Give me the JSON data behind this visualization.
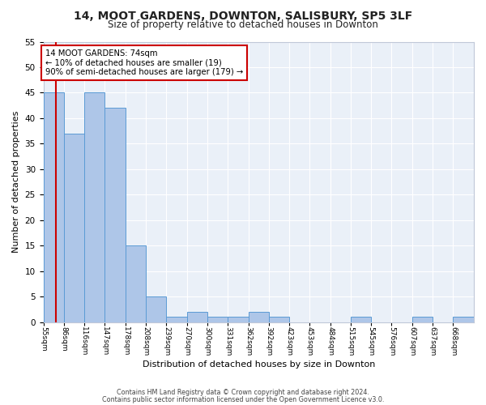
{
  "title1": "14, MOOT GARDENS, DOWNTON, SALISBURY, SP5 3LF",
  "title2": "Size of property relative to detached houses in Downton",
  "xlabel": "Distribution of detached houses by size in Downton",
  "ylabel": "Number of detached properties",
  "bin_labels": [
    "55sqm",
    "86sqm",
    "116sqm",
    "147sqm",
    "178sqm",
    "208sqm",
    "239sqm",
    "270sqm",
    "300sqm",
    "331sqm",
    "362sqm",
    "392sqm",
    "423sqm",
    "453sqm",
    "484sqm",
    "515sqm",
    "545sqm",
    "576sqm",
    "607sqm",
    "637sqm",
    "668sqm"
  ],
  "bin_edges": [
    55,
    86,
    116,
    147,
    178,
    208,
    239,
    270,
    300,
    331,
    362,
    392,
    423,
    453,
    484,
    515,
    545,
    576,
    607,
    637,
    668,
    699
  ],
  "bar_heights": [
    45,
    37,
    45,
    42,
    15,
    5,
    1,
    2,
    1,
    1,
    2,
    1,
    0,
    0,
    0,
    1,
    0,
    0,
    1,
    0,
    1
  ],
  "bar_color": "#aec6e8",
  "bar_edgecolor": "#5b9bd5",
  "background_color": "#eaf0f8",
  "grid_color": "#ffffff",
  "red_line_x": 74,
  "annotation_line1": "14 MOOT GARDENS: 74sqm",
  "annotation_line2": "← 10% of detached houses are smaller (19)",
  "annotation_line3": "90% of semi-detached houses are larger (179) →",
  "annotation_box_color": "#ffffff",
  "annotation_box_edgecolor": "#cc0000",
  "footer1": "Contains HM Land Registry data © Crown copyright and database right 2024.",
  "footer2": "Contains public sector information licensed under the Open Government Licence v3.0.",
  "ylim": [
    0,
    55
  ],
  "yticks": [
    0,
    5,
    10,
    15,
    20,
    25,
    30,
    35,
    40,
    45,
    50,
    55
  ]
}
